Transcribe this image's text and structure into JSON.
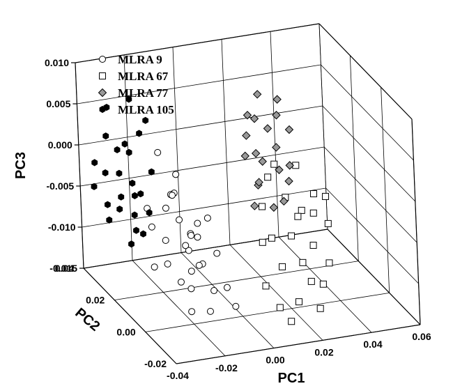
{
  "chart_data": {
    "type": "scatter",
    "dimensions": 3,
    "title": "",
    "xlabel": "PC1",
    "ylabel": "PC2",
    "zlabel": "PC3",
    "xlim": [
      -0.04,
      0.06
    ],
    "ylim": [
      -0.02,
      0.04
    ],
    "zlim": [
      -0.015,
      0.01
    ],
    "x_ticks": [
      "-0.04",
      "-0.02",
      "0.00",
      "0.02",
      "0.04",
      "0.06"
    ],
    "y_ticks": [
      "-0.02",
      "0.00",
      "0.02",
      "0.04"
    ],
    "z_ticks": [
      "-0.015",
      "-0.010",
      "-0.005",
      "0.000",
      "0.005",
      "0.010"
    ],
    "grid": true,
    "legend_position": "top-left",
    "series": [
      {
        "name": "MLRA 9",
        "marker": "circle",
        "color": "#ffffff",
        "stroke": "#000000",
        "points": [
          [
            -0.02,
            0.0,
            -0.004
          ],
          [
            -0.021,
            0.0,
            -0.006
          ],
          [
            -0.025,
            0.008,
            -0.009
          ],
          [
            -0.022,
            0.004,
            -0.003
          ],
          [
            -0.018,
            -0.004,
            -0.007
          ],
          [
            -0.02,
            0.01,
            -0.001
          ],
          [
            -0.016,
            0.002,
            -0.005
          ],
          [
            -0.015,
            -0.006,
            -0.01
          ],
          [
            -0.019,
            0.014,
            -0.002
          ],
          [
            -0.023,
            0.012,
            -0.007
          ],
          [
            -0.017,
            0.0,
            -0.008
          ],
          [
            -0.014,
            0.005,
            -0.004
          ],
          [
            -0.026,
            0.016,
            -0.006
          ],
          [
            -0.018,
            -0.008,
            -0.012
          ],
          [
            -0.012,
            -0.01,
            -0.009
          ],
          [
            -0.021,
            0.006,
            -0.011
          ],
          [
            -0.016,
            0.018,
            -0.003
          ],
          [
            -0.013,
            0.02,
            -0.001
          ],
          [
            -0.02,
            0.02,
            0.002
          ],
          [
            -0.024,
            0.022,
            -0.005
          ],
          [
            -0.022,
            -0.002,
            -0.013
          ],
          [
            -0.01,
            -0.012,
            -0.011
          ],
          [
            -0.012,
            -0.004,
            -0.006
          ],
          [
            -0.015,
            0.008,
            -0.006
          ],
          [
            -0.028,
            0.012,
            -0.01
          ],
          [
            -0.019,
            0.002,
            -0.009
          ],
          [
            -0.014,
            -0.002,
            -0.002
          ],
          [
            -0.02,
            0.016,
            -0.004
          ],
          [
            -0.017,
            0.006,
            -0.012
          ],
          [
            -0.015,
            0.012,
            -0.008
          ]
        ]
      },
      {
        "name": "MLRA 67",
        "marker": "square",
        "color": "#ffffff",
        "stroke": "#000000",
        "points": [
          [
            0.01,
            -0.005,
            -0.005
          ],
          [
            0.012,
            -0.008,
            -0.008
          ],
          [
            0.015,
            -0.01,
            -0.004
          ],
          [
            0.018,
            -0.012,
            -0.007
          ],
          [
            0.02,
            -0.014,
            -0.009
          ],
          [
            0.022,
            -0.006,
            -0.002
          ],
          [
            0.008,
            -0.002,
            -0.006
          ],
          [
            0.025,
            -0.008,
            -0.006
          ],
          [
            0.028,
            -0.004,
            -0.003
          ],
          [
            0.014,
            -0.015,
            -0.011
          ],
          [
            0.03,
            -0.01,
            -0.008
          ],
          [
            0.005,
            -0.008,
            -0.01
          ],
          [
            0.032,
            0.002,
            -0.002
          ],
          [
            0.012,
            0.004,
            -0.003
          ],
          [
            0.018,
            -0.002,
            -0.001
          ],
          [
            0.022,
            -0.016,
            -0.012
          ],
          [
            0.026,
            -0.012,
            -0.01
          ],
          [
            0.035,
            -0.002,
            -0.005
          ],
          [
            0.016,
            0.006,
            0.0
          ],
          [
            0.02,
            0.008,
            0.001
          ],
          [
            0.008,
            -0.012,
            -0.012
          ],
          [
            0.024,
            0.0,
            -0.004
          ],
          [
            0.038,
            0.004,
            -0.003
          ],
          [
            0.03,
            0.01,
            0.0
          ],
          [
            0.01,
            -0.016,
            -0.013
          ]
        ]
      },
      {
        "name": "MLRA 77",
        "marker": "diamond",
        "color": "#999999",
        "stroke": "#000000",
        "points": [
          [
            0.02,
            0.02,
            0.0
          ],
          [
            0.025,
            0.024,
            -0.002
          ],
          [
            0.03,
            0.028,
            0.001
          ],
          [
            0.018,
            0.016,
            -0.003
          ],
          [
            0.022,
            0.022,
            -0.004
          ],
          [
            0.035,
            0.03,
            0.002
          ],
          [
            0.028,
            0.018,
            -0.002
          ],
          [
            0.032,
            0.026,
            -0.001
          ],
          [
            0.015,
            0.014,
            -0.005
          ],
          [
            0.038,
            0.034,
            0.003
          ],
          [
            0.026,
            0.03,
            0.002
          ],
          [
            0.024,
            0.016,
            -0.006
          ],
          [
            0.04,
            0.03,
            0.0
          ],
          [
            0.02,
            0.026,
            0.001
          ],
          [
            0.033,
            0.02,
            -0.004
          ],
          [
            0.018,
            0.024,
            -0.001
          ],
          [
            0.03,
            0.034,
            0.004
          ],
          [
            0.027,
            0.014,
            -0.005
          ],
          [
            0.036,
            0.024,
            -0.003
          ],
          [
            0.022,
            0.028,
            0.003
          ]
        ]
      },
      {
        "name": "MLRA 105",
        "marker": "hexagon",
        "color": "#000000",
        "stroke": "#000000",
        "points": [
          [
            -0.03,
            0.03,
            -0.002
          ],
          [
            -0.032,
            0.026,
            -0.004
          ],
          [
            -0.028,
            0.034,
            0.0
          ],
          [
            -0.026,
            0.028,
            -0.003
          ],
          [
            -0.034,
            0.032,
            -0.006
          ],
          [
            -0.03,
            0.038,
            0.001
          ],
          [
            -0.024,
            0.03,
            -0.005
          ],
          [
            -0.022,
            0.036,
            -0.001
          ],
          [
            -0.036,
            0.028,
            -0.007
          ],
          [
            -0.028,
            0.024,
            -0.006
          ],
          [
            -0.02,
            0.032,
            0.002
          ],
          [
            -0.032,
            0.036,
            -0.003
          ],
          [
            -0.026,
            0.022,
            -0.008
          ],
          [
            -0.034,
            0.024,
            -0.005
          ],
          [
            -0.018,
            0.028,
            -0.002
          ],
          [
            -0.03,
            0.02,
            -0.007
          ],
          [
            -0.024,
            0.026,
            -0.004
          ],
          [
            -0.038,
            0.034,
            -0.004
          ],
          [
            -0.016,
            0.034,
            0.003
          ],
          [
            -0.028,
            0.04,
            0.004
          ],
          [
            -0.022,
            0.024,
            -0.006
          ],
          [
            -0.035,
            0.038,
            -0.002
          ],
          [
            -0.02,
            0.038,
            0.005
          ],
          [
            -0.026,
            0.032,
            0.001
          ],
          [
            -0.031,
            0.022,
            -0.009
          ]
        ]
      }
    ]
  }
}
